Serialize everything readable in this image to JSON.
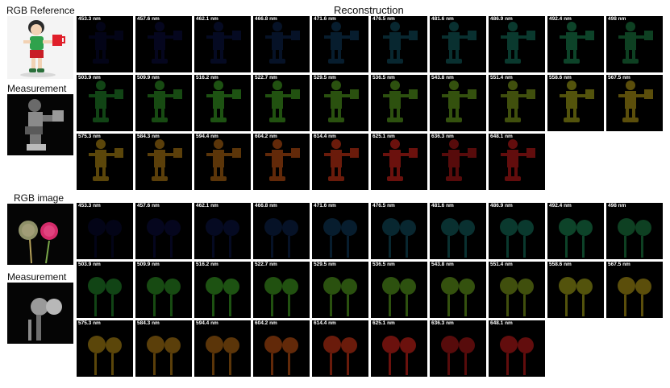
{
  "header": {
    "reconstruction": "Reconstruction"
  },
  "scene1": {
    "rgb_label": "RGB Reference",
    "measurement_label": "Measurement",
    "tile_color_hex": [
      "#1b1fa8",
      "#1f26b8",
      "#1d36b0",
      "#1f52b2",
      "#1f74b8",
      "#1f8fb0",
      "#1fa0a0",
      "#20ad8c",
      "#22ae6c",
      "#25a85a",
      "#2aa535",
      "#36a82a",
      "#3fb028",
      "#48ae24",
      "#5aae22",
      "#62ae20",
      "#70ae1f",
      "#8aaa1d",
      "#a8a81a",
      "#b89f18",
      "#b88f16",
      "#b88016",
      "#b86c14",
      "#bc5012",
      "#c23214",
      "#c42018",
      "#b01818",
      "#bc1a1a"
    ]
  },
  "scene2": {
    "rgb_label": "RGB image",
    "measurement_label": "Measurement",
    "tile_color_hex": [
      "#1b1fa8",
      "#1f26b8",
      "#1d36b0",
      "#1f52b2",
      "#1f74b8",
      "#1f8fb0",
      "#1fa0a0",
      "#20ad8c",
      "#22ae6c",
      "#25a85a",
      "#2aa535",
      "#36a82a",
      "#3fb028",
      "#48ae24",
      "#5aae22",
      "#62ae20",
      "#70ae1f",
      "#8aaa1d",
      "#a8a81a",
      "#b89f18",
      "#b88f16",
      "#b88016",
      "#b86c14",
      "#bc5012",
      "#c23214",
      "#c42018",
      "#b01818",
      "#bc1a1a"
    ]
  },
  "wavelengths": [
    "453.3 nm",
    "457.6 nm",
    "462.1 nm",
    "466.8 nm",
    "471.6 nm",
    "476.5 nm",
    "481.6 nm",
    "486.9 nm",
    "492.4 nm",
    "498 nm",
    "503.9 nm",
    "509.9 nm",
    "516.2 nm",
    "522.7 nm",
    "529.5 nm",
    "536.5 nm",
    "543.8 nm",
    "551.4 nm",
    "558.6 nm",
    "567.5 nm",
    "575.3 nm",
    "584.3 nm",
    "594.4 nm",
    "604.2 nm",
    "614.4 nm",
    "625.1 nm",
    "636.3 nm",
    "648.1 nm"
  ],
  "tile_intensity": [
    0.25,
    0.3,
    0.35,
    0.4,
    0.45,
    0.5,
    0.55,
    0.6,
    0.7,
    0.7,
    0.75,
    0.8,
    0.85,
    0.85,
    0.85,
    0.85,
    0.85,
    0.85,
    0.9,
    0.9,
    0.9,
    0.9,
    0.9,
    0.95,
    1.0,
    1.0,
    0.9,
    0.95
  ]
}
